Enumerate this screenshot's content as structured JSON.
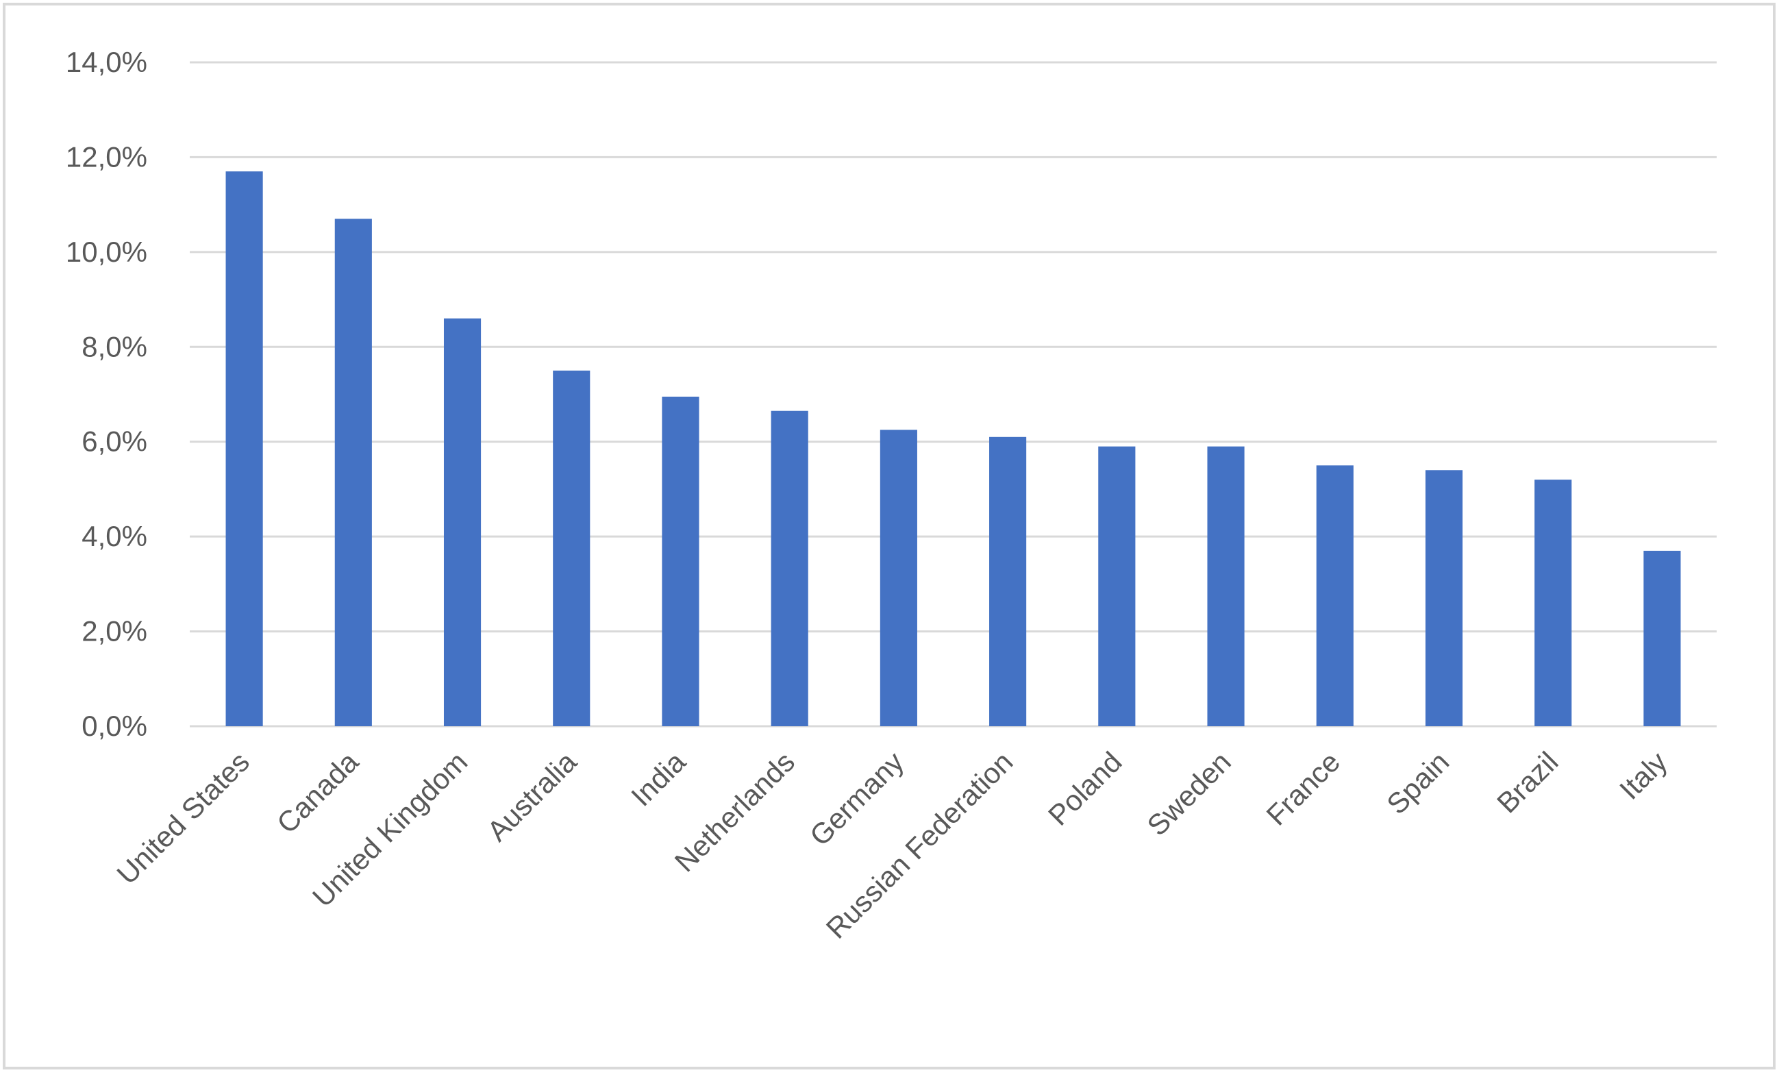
{
  "chart_data": {
    "type": "bar",
    "categories": [
      "United States",
      "Canada",
      "United Kingdom",
      "Australia",
      "India",
      "Netherlands",
      "Germany",
      "Russian Federation",
      "Poland",
      "Sweden",
      "France",
      "Spain",
      "Brazil",
      "Italy"
    ],
    "values": [
      11.7,
      10.7,
      8.6,
      7.5,
      6.95,
      6.65,
      6.25,
      6.1,
      5.9,
      5.9,
      5.5,
      5.4,
      5.2,
      3.7
    ],
    "color": "#4472c4",
    "ylim": [
      0,
      14
    ],
    "yticks": [
      {
        "value": 0,
        "label": "0,0%"
      },
      {
        "value": 2,
        "label": "2,0%"
      },
      {
        "value": 4,
        "label": "4,0%"
      },
      {
        "value": 6,
        "label": "6,0%"
      },
      {
        "value": 8,
        "label": "8,0%"
      },
      {
        "value": 10,
        "label": "10,0%"
      },
      {
        "value": 12,
        "label": "12,0%"
      },
      {
        "value": 14,
        "label": "14,0%"
      }
    ],
    "grid": true
  }
}
